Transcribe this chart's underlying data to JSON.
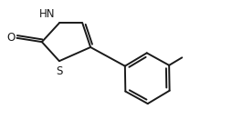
{
  "bg_color": "#ffffff",
  "line_color": "#1a1a1a",
  "line_width": 1.4,
  "font_size": 8.5,
  "figsize": [
    2.54,
    1.42
  ],
  "dpi": 100,
  "xlim": [
    0,
    10
  ],
  "ylim": [
    0,
    5.6
  ]
}
